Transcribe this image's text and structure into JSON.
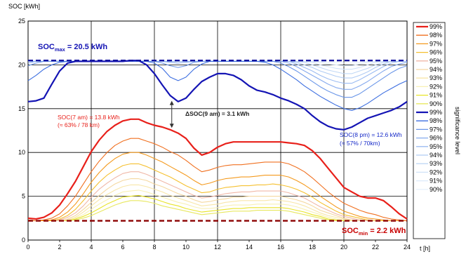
{
  "chart_data": {
    "type": "line",
    "ylabel": "SOC [kWh]",
    "xlabel": "t [h]",
    "xlim": [
      0,
      24
    ],
    "ylim": [
      0,
      25
    ],
    "xticks": [
      0,
      2,
      4,
      6,
      8,
      10,
      12,
      14,
      16,
      18,
      20,
      22,
      24
    ],
    "yticks": [
      0,
      5,
      10,
      15,
      20,
      25
    ],
    "grid": "major every 4 h and every 5 kWh",
    "x": [
      0,
      0.5,
      1,
      1.5,
      2,
      2.5,
      3,
      3.5,
      4,
      4.5,
      5,
      5.5,
      6,
      6.5,
      7,
      7.5,
      8,
      8.5,
      9,
      9.5,
      10,
      10.5,
      11,
      11.5,
      12,
      12.5,
      13,
      13.5,
      14,
      14.5,
      15,
      15.5,
      16,
      16.5,
      17,
      17.5,
      18,
      18.5,
      19,
      19.5,
      20,
      20.5,
      21,
      21.5,
      22,
      22.5,
      23,
      23.5,
      24
    ],
    "soc_max": {
      "value": 20.5,
      "label_main": "SOC",
      "label_sub": "max",
      "label_value": " = 20.5 kWh",
      "color": "#1414a0"
    },
    "soc_min": {
      "value": 2.2,
      "label_main": "SOC",
      "label_sub": "min",
      "label_value": " = 2.2 kWh",
      "color": "#8b0000"
    },
    "levels": [
      "99%",
      "98%",
      "97%",
      "96%",
      "95%",
      "94%",
      "93%",
      "92%",
      "91%",
      "90%"
    ],
    "legend_title": "significance level",
    "lower_colors": [
      "#e8201a",
      "#f07020",
      "#f49a1e",
      "#f5c030",
      "#f0b8a8",
      "#f5d8a0",
      "#f8e6a8",
      "#f8f0b4",
      "#e8e428",
      "#e8e860"
    ],
    "upper_colors": [
      "#1414b4",
      "#3c6ee0",
      "#6a96e8",
      "#86aaee",
      "#9cbcf2",
      "#b0ccf4",
      "#c0d8f6",
      "#d0e2f8",
      "#dceafa",
      "#e8f2fc"
    ],
    "lower_series": [
      {
        "name": "99%",
        "values": [
          2.5,
          2.4,
          2.6,
          3.1,
          4.0,
          5.3,
          6.7,
          8.4,
          10.1,
          11.4,
          12.4,
          13.1,
          13.6,
          13.8,
          13.8,
          13.4,
          13.1,
          12.9,
          12.6,
          12.2,
          11.6,
          10.5,
          9.7,
          10.0,
          10.6,
          11.0,
          11.2,
          11.2,
          11.2,
          11.2,
          11.2,
          11.2,
          11.2,
          11.1,
          11.0,
          10.8,
          10.2,
          9.3,
          8.2,
          7.1,
          6.0,
          5.5,
          5.0,
          4.8,
          4.8,
          4.5,
          3.8,
          3.0,
          2.4
        ]
      },
      {
        "name": "98%",
        "values": [
          2.3,
          2.2,
          2.3,
          2.5,
          3.0,
          3.9,
          5.0,
          6.4,
          7.8,
          9.0,
          10.0,
          10.8,
          11.3,
          11.6,
          11.6,
          11.3,
          11.0,
          10.6,
          10.1,
          9.7,
          9.1,
          8.4,
          7.8,
          8.0,
          8.3,
          8.5,
          8.6,
          8.6,
          8.7,
          8.8,
          8.9,
          8.9,
          8.9,
          8.7,
          8.3,
          7.8,
          7.1,
          6.3,
          5.5,
          4.8,
          4.2,
          3.8,
          3.4,
          3.1,
          2.9,
          2.6,
          2.4,
          2.3,
          2.2
        ]
      },
      {
        "name": "97%",
        "values": [
          2.2,
          2.2,
          2.2,
          2.3,
          2.6,
          3.2,
          4.1,
          5.3,
          6.6,
          7.7,
          8.6,
          9.3,
          9.8,
          10.0,
          10.0,
          9.7,
          9.3,
          8.9,
          8.4,
          7.9,
          7.4,
          6.8,
          6.3,
          6.5,
          6.8,
          7.0,
          7.1,
          7.2,
          7.2,
          7.3,
          7.4,
          7.4,
          7.4,
          7.2,
          6.8,
          6.3,
          5.7,
          5.0,
          4.4,
          3.8,
          3.3,
          3.0,
          2.7,
          2.5,
          2.4,
          2.3,
          2.2,
          2.2,
          2.2
        ]
      },
      {
        "name": "96%",
        "values": [
          2.2,
          2.2,
          2.2,
          2.2,
          2.4,
          2.8,
          3.5,
          4.5,
          5.6,
          6.6,
          7.4,
          8.0,
          8.5,
          8.7,
          8.7,
          8.4,
          8.0,
          7.6,
          7.2,
          6.7,
          6.2,
          5.8,
          5.4,
          5.5,
          5.8,
          6.0,
          6.1,
          6.2,
          6.2,
          6.3,
          6.3,
          6.4,
          6.3,
          6.1,
          5.8,
          5.4,
          4.9,
          4.3,
          3.8,
          3.3,
          2.9,
          2.7,
          2.5,
          2.3,
          2.2,
          2.2,
          2.2,
          2.2,
          2.2
        ]
      },
      {
        "name": "95%",
        "values": [
          2.2,
          2.2,
          2.2,
          2.2,
          2.3,
          2.6,
          3.1,
          3.9,
          4.9,
          5.8,
          6.5,
          7.1,
          7.6,
          7.8,
          7.8,
          7.5,
          7.1,
          6.7,
          6.3,
          5.9,
          5.5,
          5.1,
          4.8,
          4.9,
          5.1,
          5.3,
          5.4,
          5.5,
          5.5,
          5.6,
          5.6,
          5.6,
          5.6,
          5.4,
          5.1,
          4.8,
          4.3,
          3.8,
          3.4,
          3.0,
          2.7,
          2.5,
          2.3,
          2.2,
          2.2,
          2.2,
          2.2,
          2.2,
          2.2
        ]
      },
      {
        "name": "94%",
        "values": [
          2.2,
          2.2,
          2.2,
          2.2,
          2.2,
          2.4,
          2.8,
          3.5,
          4.3,
          5.1,
          5.8,
          6.4,
          6.8,
          7.0,
          7.0,
          6.8,
          6.4,
          6.1,
          5.7,
          5.3,
          5.0,
          4.6,
          4.3,
          4.4,
          4.6,
          4.7,
          4.9,
          4.9,
          5.0,
          5.0,
          5.0,
          5.0,
          5.0,
          4.8,
          4.6,
          4.3,
          3.9,
          3.4,
          3.1,
          2.8,
          2.5,
          2.3,
          2.2,
          2.2,
          2.2,
          2.2,
          2.2,
          2.2,
          2.2
        ]
      },
      {
        "name": "93%",
        "values": [
          2.2,
          2.2,
          2.2,
          2.2,
          2.2,
          2.3,
          2.6,
          3.2,
          3.9,
          4.6,
          5.2,
          5.7,
          6.1,
          6.3,
          6.3,
          6.1,
          5.8,
          5.5,
          5.1,
          4.8,
          4.5,
          4.2,
          3.9,
          4.0,
          4.1,
          4.3,
          4.4,
          4.5,
          4.5,
          4.5,
          4.5,
          4.6,
          4.5,
          4.4,
          4.2,
          3.9,
          3.5,
          3.1,
          2.8,
          2.6,
          2.4,
          2.2,
          2.2,
          2.2,
          2.2,
          2.2,
          2.2,
          2.2,
          2.2
        ]
      },
      {
        "name": "92%",
        "values": [
          2.2,
          2.2,
          2.2,
          2.2,
          2.2,
          2.3,
          2.5,
          2.9,
          3.5,
          4.1,
          4.6,
          5.1,
          5.5,
          5.6,
          5.7,
          5.5,
          5.2,
          4.9,
          4.6,
          4.3,
          4.1,
          3.8,
          3.6,
          3.6,
          3.7,
          3.9,
          4.0,
          4.0,
          4.0,
          4.1,
          4.1,
          4.1,
          4.1,
          4.0,
          3.8,
          3.5,
          3.2,
          2.9,
          2.6,
          2.4,
          2.3,
          2.2,
          2.2,
          2.2,
          2.2,
          2.2,
          2.2,
          2.2,
          2.2
        ]
      },
      {
        "name": "91%",
        "values": [
          2.2,
          2.2,
          2.2,
          2.2,
          2.2,
          2.2,
          2.4,
          2.7,
          3.1,
          3.6,
          4.1,
          4.5,
          4.9,
          5.0,
          5.1,
          4.9,
          4.7,
          4.4,
          4.1,
          3.9,
          3.6,
          3.4,
          3.2,
          3.3,
          3.4,
          3.5,
          3.6,
          3.6,
          3.7,
          3.7,
          3.7,
          3.7,
          3.7,
          3.6,
          3.4,
          3.2,
          2.9,
          2.7,
          2.4,
          2.3,
          2.2,
          2.2,
          2.2,
          2.2,
          2.2,
          2.2,
          2.2,
          2.2,
          2.2
        ]
      },
      {
        "name": "90%",
        "values": [
          2.2,
          2.2,
          2.2,
          2.2,
          2.2,
          2.2,
          2.3,
          2.5,
          2.8,
          3.2,
          3.6,
          4.0,
          4.3,
          4.5,
          4.5,
          4.4,
          4.2,
          3.9,
          3.7,
          3.5,
          3.3,
          3.1,
          2.9,
          3.0,
          3.1,
          3.2,
          3.3,
          3.3,
          3.3,
          3.4,
          3.4,
          3.4,
          3.4,
          3.3,
          3.1,
          2.9,
          2.7,
          2.5,
          2.3,
          2.2,
          2.2,
          2.2,
          2.2,
          2.2,
          2.2,
          2.2,
          2.2,
          2.2,
          2.2
        ]
      }
    ],
    "upper_series": [
      {
        "name": "99%",
        "values": [
          15.8,
          15.9,
          16.2,
          17.8,
          19.3,
          20.2,
          20.4,
          20.4,
          20.4,
          20.4,
          20.4,
          20.4,
          20.4,
          20.5,
          20.5,
          20.0,
          19.0,
          17.7,
          16.5,
          15.8,
          16.2,
          17.2,
          18.1,
          18.6,
          19.0,
          19.0,
          18.8,
          18.3,
          17.6,
          17.1,
          16.9,
          16.6,
          16.2,
          15.9,
          15.5,
          15.0,
          14.2,
          13.5,
          13.0,
          12.7,
          12.6,
          12.9,
          13.4,
          13.9,
          14.2,
          14.5,
          14.8,
          15.2,
          15.8
        ]
      },
      {
        "name": "98%",
        "values": [
          18.2,
          18.8,
          19.5,
          20.0,
          20.3,
          20.4,
          20.4,
          20.4,
          20.4,
          20.4,
          20.4,
          20.4,
          20.4,
          20.4,
          20.4,
          20.4,
          20.2,
          19.6,
          18.6,
          18.2,
          18.6,
          19.5,
          20.1,
          20.4,
          20.4,
          20.4,
          20.4,
          20.4,
          20.4,
          20.4,
          20.3,
          20.0,
          19.5,
          18.9,
          18.3,
          17.6,
          17.0,
          16.4,
          15.9,
          15.4,
          15.0,
          14.8,
          15.1,
          15.6,
          16.2,
          16.8,
          17.3,
          17.8,
          18.2
        ]
      },
      {
        "name": "97%",
        "values": [
          19.9,
          20.2,
          20.4,
          20.4,
          20.4,
          20.4,
          20.4,
          20.4,
          20.4,
          20.4,
          20.4,
          20.4,
          20.4,
          20.4,
          20.4,
          20.4,
          20.4,
          20.2,
          19.9,
          19.7,
          19.9,
          20.3,
          20.4,
          20.4,
          20.4,
          20.4,
          20.4,
          20.4,
          20.4,
          20.4,
          20.4,
          20.4,
          20.2,
          19.8,
          19.3,
          18.7,
          18.1,
          17.5,
          17.0,
          16.6,
          16.3,
          16.3,
          16.7,
          17.3,
          17.9,
          18.5,
          19.1,
          19.6,
          19.9
        ]
      },
      {
        "name": "96%",
        "values": [
          20.2,
          20.4,
          20.4,
          20.4,
          20.4,
          20.4,
          20.4,
          20.4,
          20.4,
          20.4,
          20.4,
          20.4,
          20.4,
          20.4,
          20.4,
          20.4,
          20.4,
          20.4,
          20.3,
          20.2,
          20.3,
          20.4,
          20.4,
          20.4,
          20.4,
          20.4,
          20.4,
          20.4,
          20.4,
          20.4,
          20.4,
          20.4,
          20.4,
          20.2,
          19.8,
          19.3,
          18.8,
          18.3,
          17.8,
          17.4,
          17.2,
          17.2,
          17.6,
          18.1,
          18.7,
          19.3,
          19.8,
          20.1,
          20.3
        ]
      },
      {
        "name": "95%",
        "values": [
          20.4,
          20.4,
          20.4,
          20.4,
          20.4,
          20.4,
          20.4,
          20.4,
          20.4,
          20.4,
          20.4,
          20.4,
          20.4,
          20.4,
          20.4,
          20.4,
          20.4,
          20.4,
          20.4,
          20.4,
          20.4,
          20.4,
          20.4,
          20.4,
          20.4,
          20.4,
          20.4,
          20.4,
          20.4,
          20.4,
          20.4,
          20.4,
          20.4,
          20.4,
          20.1,
          19.7,
          19.3,
          18.8,
          18.4,
          18.1,
          17.9,
          17.9,
          18.3,
          18.8,
          19.3,
          19.8,
          20.2,
          20.4,
          20.4
        ]
      },
      {
        "name": "94%",
        "values": [
          20.4,
          20.4,
          20.4,
          20.4,
          20.4,
          20.4,
          20.4,
          20.4,
          20.4,
          20.4,
          20.4,
          20.4,
          20.4,
          20.4,
          20.4,
          20.4,
          20.4,
          20.4,
          20.4,
          20.4,
          20.4,
          20.4,
          20.4,
          20.4,
          20.4,
          20.4,
          20.4,
          20.4,
          20.4,
          20.4,
          20.4,
          20.4,
          20.4,
          20.4,
          20.3,
          20.0,
          19.7,
          19.3,
          19.0,
          18.7,
          18.5,
          18.5,
          18.8,
          19.2,
          19.7,
          20.1,
          20.4,
          20.4,
          20.4
        ]
      },
      {
        "name": "93%",
        "values": [
          20.4,
          20.4,
          20.4,
          20.4,
          20.4,
          20.4,
          20.4,
          20.4,
          20.4,
          20.4,
          20.4,
          20.4,
          20.4,
          20.4,
          20.4,
          20.4,
          20.4,
          20.4,
          20.4,
          20.4,
          20.4,
          20.4,
          20.4,
          20.4,
          20.4,
          20.4,
          20.4,
          20.4,
          20.4,
          20.4,
          20.4,
          20.4,
          20.4,
          20.4,
          20.4,
          20.3,
          20.0,
          19.7,
          19.4,
          19.2,
          19.0,
          19.0,
          19.3,
          19.6,
          20.0,
          20.3,
          20.4,
          20.4,
          20.4
        ]
      },
      {
        "name": "92%",
        "values": [
          20.4,
          20.4,
          20.4,
          20.4,
          20.4,
          20.4,
          20.4,
          20.4,
          20.4,
          20.4,
          20.4,
          20.4,
          20.4,
          20.4,
          20.4,
          20.4,
          20.4,
          20.4,
          20.4,
          20.4,
          20.4,
          20.4,
          20.4,
          20.4,
          20.4,
          20.4,
          20.4,
          20.4,
          20.4,
          20.4,
          20.4,
          20.4,
          20.4,
          20.4,
          20.4,
          20.4,
          20.3,
          20.0,
          19.8,
          19.6,
          19.5,
          19.5,
          19.7,
          20.0,
          20.3,
          20.4,
          20.4,
          20.4,
          20.4
        ]
      },
      {
        "name": "91%",
        "values": [
          20.4,
          20.4,
          20.4,
          20.4,
          20.4,
          20.4,
          20.4,
          20.4,
          20.4,
          20.4,
          20.4,
          20.4,
          20.4,
          20.4,
          20.4,
          20.4,
          20.4,
          20.4,
          20.4,
          20.4,
          20.4,
          20.4,
          20.4,
          20.4,
          20.4,
          20.4,
          20.4,
          20.4,
          20.4,
          20.4,
          20.4,
          20.4,
          20.4,
          20.4,
          20.4,
          20.4,
          20.4,
          20.3,
          20.1,
          20.0,
          19.9,
          19.9,
          20.1,
          20.3,
          20.4,
          20.4,
          20.4,
          20.4,
          20.4
        ]
      },
      {
        "name": "90%",
        "values": [
          20.4,
          20.4,
          20.4,
          20.4,
          20.4,
          20.4,
          20.4,
          20.4,
          20.4,
          20.4,
          20.4,
          20.4,
          20.4,
          20.4,
          20.4,
          20.4,
          20.4,
          20.4,
          20.4,
          20.4,
          20.4,
          20.4,
          20.4,
          20.4,
          20.4,
          20.4,
          20.4,
          20.4,
          20.4,
          20.4,
          20.4,
          20.4,
          20.4,
          20.4,
          20.4,
          20.4,
          20.4,
          20.4,
          20.3,
          20.3,
          20.2,
          20.2,
          20.3,
          20.4,
          20.4,
          20.4,
          20.4,
          20.4,
          20.4
        ]
      }
    ],
    "annotations": {
      "soc7_line1": "SOC(7 am) = 13.8 kWh",
      "soc7_line2": "(≈ 63% / 78 km)",
      "delta_main": "ΔSOC(9 am) = 3.1 kWh",
      "delta_from": 12.8,
      "delta_to": 15.9,
      "delta_x": 9.1,
      "soc8_line1": "SOC(8 pm) = 12.6 kWh",
      "soc8_line2": "(≈ 57% / 70km)"
    }
  }
}
